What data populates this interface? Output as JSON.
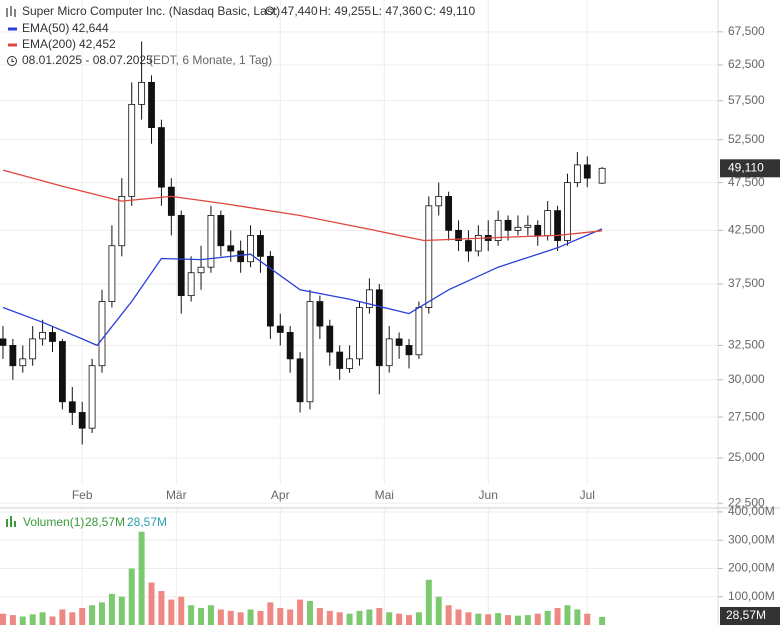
{
  "header": {
    "title": "Super Micro Computer Inc. (Nasdaq Basic, Last)",
    "ohlc": [
      "O: 47,440",
      "H: 49,255",
      "L: 47,360",
      "C: 49,110"
    ],
    "range": "08.01.2025 - 08.07.2025",
    "range_note": "(EDT, 6 Monate, 1 Tag)"
  },
  "chart_data": [
    {
      "type": "candlestick",
      "log_scale": true,
      "grid": true,
      "up_color": "#ffffff",
      "down_color": "#111111",
      "outline_color": "#111111",
      "x": [
        0,
        2,
        4,
        6,
        8,
        10,
        12,
        14,
        16,
        18,
        20,
        22,
        24,
        26,
        28,
        30,
        32,
        34,
        36,
        38,
        40,
        42,
        44,
        46,
        48,
        50,
        52,
        54,
        56,
        58,
        60,
        62,
        64,
        66,
        68,
        70,
        72,
        74,
        76,
        78,
        80,
        82,
        84,
        86,
        88,
        90,
        92,
        94,
        96,
        98,
        100,
        102,
        104,
        106,
        108,
        110,
        112,
        114,
        116,
        118,
        121
      ],
      "open": [
        33000,
        32500,
        31000,
        31500,
        33000,
        33500,
        32800,
        28500,
        27800,
        26800,
        31000,
        36000,
        41000,
        46000,
        57000,
        60000,
        54000,
        47000,
        44000,
        36500,
        38500,
        39000,
        44000,
        41000,
        40500,
        39500,
        42000,
        40000,
        34000,
        33500,
        31500,
        28500,
        36000,
        34000,
        32000,
        30800,
        31500,
        35500,
        37000,
        31000,
        33000,
        32500,
        31800,
        35500,
        45000,
        46000,
        42500,
        41500,
        40500,
        42000,
        41500,
        43500,
        42500,
        42800,
        43000,
        42000,
        44500,
        41500,
        47500,
        49500,
        47440
      ],
      "high": [
        34000,
        33000,
        32500,
        34000,
        34500,
        34000,
        33000,
        29500,
        28500,
        31500,
        37000,
        43000,
        48000,
        60000,
        66000,
        61000,
        55000,
        48000,
        44500,
        40000,
        41000,
        45000,
        44500,
        42500,
        41500,
        43000,
        42500,
        40500,
        35000,
        34000,
        32000,
        37000,
        36500,
        34500,
        32500,
        32500,
        36000,
        38000,
        37500,
        34000,
        33500,
        33000,
        36000,
        46000,
        47500,
        46500,
        43500,
        42500,
        43000,
        43500,
        44500,
        44000,
        44000,
        44000,
        43500,
        45500,
        45000,
        48500,
        51000,
        50500,
        49255
      ],
      "low": [
        31500,
        30000,
        30500,
        31000,
        32500,
        32000,
        28000,
        27000,
        25800,
        26500,
        30500,
        35500,
        40000,
        45000,
        55000,
        52000,
        45000,
        42000,
        35000,
        36000,
        37000,
        38500,
        40000,
        39500,
        38500,
        39000,
        38500,
        33000,
        32500,
        30500,
        27800,
        28000,
        33000,
        31000,
        30000,
        30500,
        31000,
        35000,
        29000,
        30500,
        31500,
        30800,
        31500,
        35000,
        44000,
        41500,
        40500,
        39500,
        40000,
        40500,
        41000,
        41500,
        42000,
        42000,
        41000,
        41500,
        40500,
        41000,
        47000,
        47000,
        47360
      ],
      "close": [
        32500,
        31000,
        31500,
        33000,
        33500,
        32800,
        28500,
        27800,
        26800,
        31000,
        36000,
        41000,
        46000,
        57000,
        60000,
        54000,
        47000,
        44000,
        36500,
        38500,
        39000,
        44000,
        41000,
        40500,
        39500,
        42000,
        40000,
        34000,
        33500,
        31500,
        28500,
        36000,
        34000,
        32000,
        30800,
        31500,
        35500,
        37000,
        31000,
        33000,
        32500,
        31800,
        35500,
        45000,
        46000,
        42500,
        41500,
        40500,
        42000,
        41500,
        43500,
        42500,
        42800,
        43000,
        42000,
        44500,
        41500,
        47500,
        49500,
        48000,
        49110
      ],
      "series": [
        {
          "name": "EMA(50)",
          "color": "#2a3fd8",
          "legend_value": "42,644",
          "x": [
            0,
            8,
            16,
            19,
            26,
            32,
            40,
            50,
            60,
            70,
            82,
            90,
            100,
            112,
            121
          ],
          "values": [
            35500,
            34300,
            33000,
            32500,
            36000,
            39800,
            39700,
            40200,
            37000,
            36200,
            35000,
            37000,
            39000,
            40800,
            42644
          ]
        },
        {
          "name": "EMA(200)",
          "color": "#e0463c",
          "legend_value": "42,452",
          "x": [
            0,
            12,
            24,
            34,
            45,
            60,
            75,
            85,
            100,
            112,
            121
          ],
          "values": [
            48900,
            47100,
            45500,
            46000,
            45200,
            44000,
            42500,
            41500,
            41800,
            42000,
            42452
          ]
        }
      ],
      "xlim": [
        -0.6,
        144.4
      ],
      "xticks": [
        {
          "value": 16,
          "label": "Feb"
        },
        {
          "value": 35,
          "label": "Mär"
        },
        {
          "value": 56,
          "label": "Apr"
        },
        {
          "value": 77,
          "label": "Mai"
        },
        {
          "value": 98,
          "label": "Jun"
        },
        {
          "value": 118,
          "label": "Jul"
        }
      ],
      "ylim": [
        22250,
        72700
      ],
      "yticks": [
        {
          "value": 22500,
          "label": "22,500"
        },
        {
          "value": 25000,
          "label": "25,000"
        },
        {
          "value": 27500,
          "label": "27,500"
        },
        {
          "value": 30000,
          "label": "30,000"
        },
        {
          "value": 32500,
          "label": "32,500"
        },
        {
          "value": 37500,
          "label": "37,500"
        },
        {
          "value": 42500,
          "label": "42,500"
        },
        {
          "value": 47500,
          "label": "47,500"
        },
        {
          "value": 52500,
          "label": "52,500"
        },
        {
          "value": 57500,
          "label": "57,500"
        },
        {
          "value": 62500,
          "label": "62,500"
        },
        {
          "value": 67500,
          "label": "67,500"
        }
      ],
      "last_price": {
        "value": 49110,
        "label": "49,110"
      }
    },
    {
      "type": "bar",
      "title": "Volumen(1)",
      "legend_values": [
        "28,57M",
        "28,57M"
      ],
      "up_color": "#7cc96f",
      "down_color": "#ee8883",
      "grid": true,
      "x": [
        0,
        2,
        4,
        6,
        8,
        10,
        12,
        14,
        16,
        18,
        20,
        22,
        24,
        26,
        28,
        30,
        32,
        34,
        36,
        38,
        40,
        42,
        44,
        46,
        48,
        50,
        52,
        54,
        56,
        58,
        60,
        62,
        64,
        66,
        68,
        70,
        72,
        74,
        76,
        78,
        80,
        82,
        84,
        86,
        88,
        90,
        92,
        94,
        96,
        98,
        100,
        102,
        104,
        106,
        108,
        110,
        112,
        114,
        116,
        118,
        121
      ],
      "values": [
        40,
        35,
        30,
        38,
        45,
        30,
        55,
        45,
        60,
        70,
        80,
        110,
        100,
        200,
        330,
        150,
        120,
        90,
        100,
        70,
        60,
        70,
        55,
        50,
        45,
        55,
        50,
        80,
        60,
        55,
        90,
        85,
        60,
        50,
        45,
        40,
        50,
        55,
        60,
        45,
        40,
        35,
        45,
        160,
        100,
        70,
        55,
        45,
        40,
        38,
        42,
        35,
        33,
        35,
        40,
        50,
        60,
        70,
        55,
        40,
        28.57
      ],
      "ylim": [
        0,
        414
      ],
      "yticks": [
        {
          "value": 100,
          "label": "100,00M"
        },
        {
          "value": 200,
          "label": "200,00M"
        },
        {
          "value": 300,
          "label": "300,00M"
        },
        {
          "value": 400,
          "label": "400,00M"
        }
      ],
      "last_value": {
        "value": 28.57,
        "label": "28,57M"
      }
    }
  ]
}
